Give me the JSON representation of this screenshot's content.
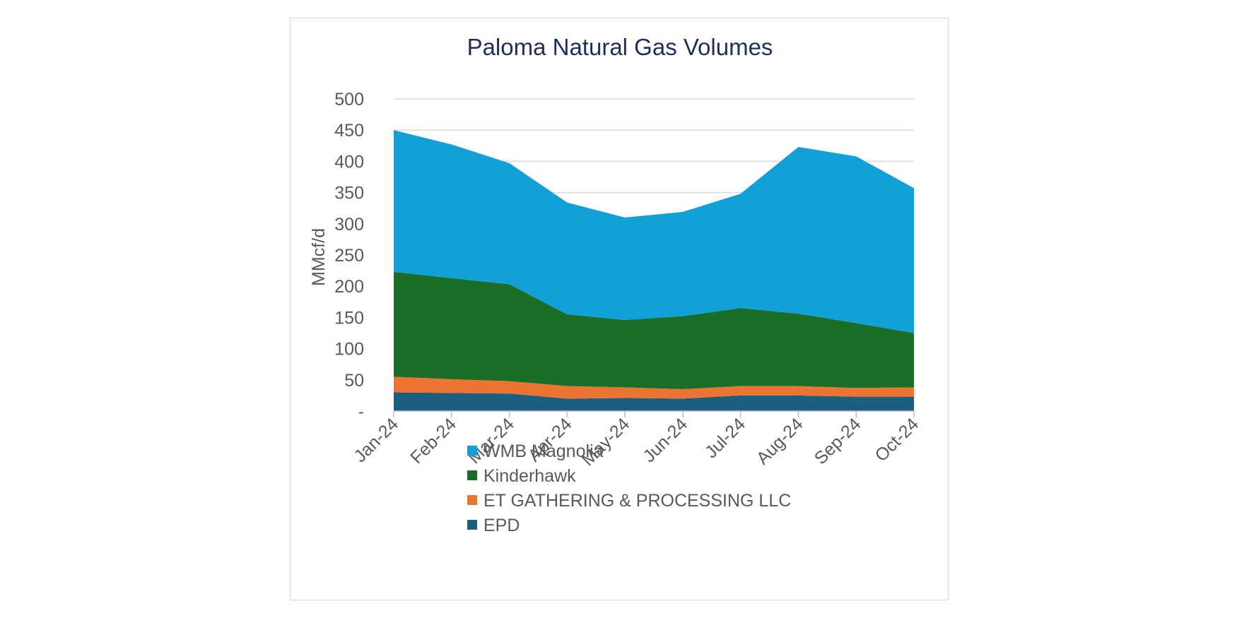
{
  "chart_data": {
    "type": "area",
    "stacked": true,
    "title": "Paloma Natural Gas Volumes",
    "xlabel": "",
    "ylabel": "MMcf/d",
    "ylim": [
      0,
      500
    ],
    "yticks": [
      0,
      50,
      100,
      150,
      200,
      250,
      300,
      350,
      400,
      450,
      500
    ],
    "ytick_labels": [
      "-",
      "50",
      "100",
      "150",
      "200",
      "250",
      "300",
      "350",
      "400",
      "450",
      "500"
    ],
    "grid": true,
    "legend_position": "bottom",
    "categories": [
      "Jan-24",
      "Feb-24",
      "Mar-24",
      "Apr-24",
      "May-24",
      "Jun-24",
      "Jul-24",
      "Aug-24",
      "Sep-24",
      "Oct-24"
    ],
    "series": [
      {
        "name": "EPD",
        "color": "#1a5e80",
        "values": [
          30,
          29,
          28,
          20,
          21,
          20,
          25,
          25,
          23,
          23
        ]
      },
      {
        "name": "ET GATHERING & PROCESSING LLC",
        "color": "#eb7430",
        "values": [
          25,
          22,
          20,
          20,
          17,
          15,
          15,
          15,
          14,
          15
        ]
      },
      {
        "name": "Kinderhawk",
        "color": "#1b6e27",
        "values": [
          168,
          162,
          155,
          115,
          108,
          117,
          125,
          116,
          104,
          87
        ]
      },
      {
        "name": "WMB Magnolia",
        "color": "#12a0d8",
        "values": [
          227,
          214,
          194,
          179,
          164,
          167,
          183,
          267,
          267,
          232
        ]
      }
    ],
    "legend_order": [
      "WMB Magnolia",
      "Kinderhawk",
      "ET GATHERING & PROCESSING LLC",
      "EPD"
    ]
  }
}
